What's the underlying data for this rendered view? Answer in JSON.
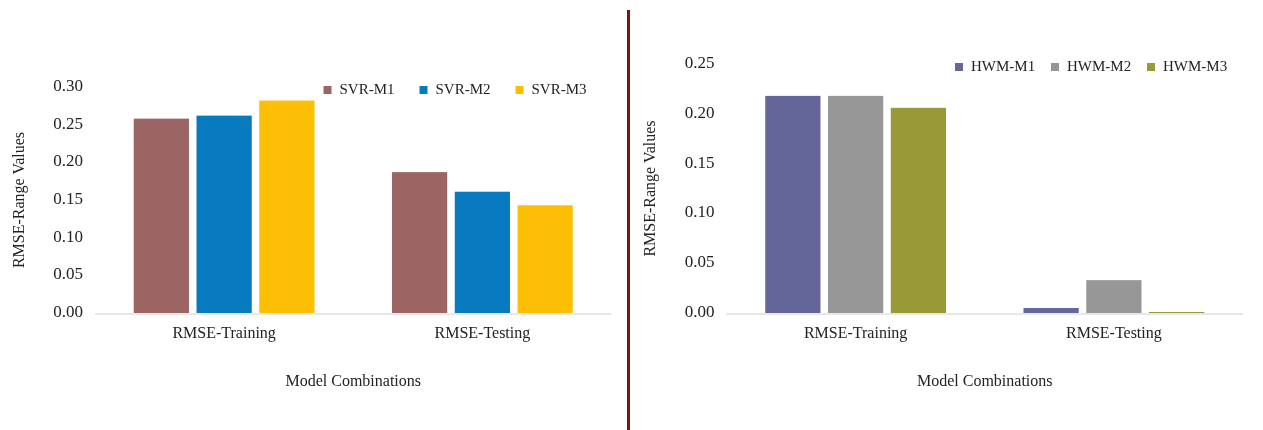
{
  "chart_data": [
    {
      "type": "bar",
      "xlabel": "Model Combinations",
      "ylabel": "RMSE-Range Values",
      "categories": [
        "RMSE-Training",
        "RMSE-Testing"
      ],
      "series": [
        {
          "name": "SVR-M1",
          "color": "#9b6563",
          "values": [
            0.258,
            0.187
          ]
        },
        {
          "name": "SVR-M2",
          "color": "#0679bf",
          "values": [
            0.262,
            0.161
          ]
        },
        {
          "name": "SVR-M3",
          "color": "#fcbf05",
          "values": [
            0.282,
            0.143
          ]
        }
      ],
      "ylim": [
        0,
        0.3
      ],
      "yticks": [
        {
          "value": 0,
          "label": "0.00"
        },
        {
          "value": 0.05,
          "label": "0.05"
        },
        {
          "value": 0.1,
          "label": "0.10"
        },
        {
          "value": 0.15,
          "label": "0.15"
        },
        {
          "value": 0.2,
          "label": "0.20"
        },
        {
          "value": 0.25,
          "label": "0.25"
        },
        {
          "value": 0.3,
          "label": "0.30"
        }
      ],
      "legend": "top right"
    },
    {
      "type": "bar",
      "xlabel": "Model Combinations",
      "ylabel": "RMSE-Range Values",
      "categories": [
        "RMSE-Training",
        "RMSE-Testing"
      ],
      "series": [
        {
          "name": "HWM-M1",
          "color": "#64669a",
          "values": [
            0.218,
            0.005
          ]
        },
        {
          "name": "HWM-M2",
          "color": "#979797",
          "values": [
            0.218,
            0.033
          ]
        },
        {
          "name": "HWM-M3",
          "color": "#979a37",
          "values": [
            0.206,
            0.001
          ]
        }
      ],
      "ylim": [
        0,
        0.25
      ],
      "yticks": [
        {
          "value": 0,
          "label": "0.00"
        },
        {
          "value": 0.05,
          "label": "0.05"
        },
        {
          "value": 0.1,
          "label": "0.10"
        },
        {
          "value": 0.15,
          "label": "0.15"
        },
        {
          "value": 0.2,
          "label": "0.20"
        },
        {
          "value": 0.25,
          "label": "0.25"
        }
      ],
      "legend": "top right"
    }
  ]
}
